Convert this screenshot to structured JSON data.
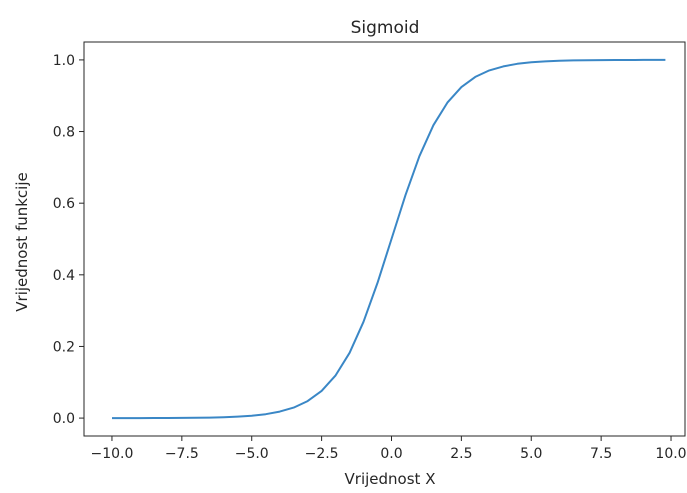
{
  "chart_data": {
    "type": "line",
    "title": "Sigmoid",
    "xlabel": "Vrijednost X",
    "ylabel": "Vrijednost funkcije",
    "xlim": [
      -11.0,
      10.5
    ],
    "ylim": [
      -0.05,
      1.05
    ],
    "x_ticks": [
      -10.0,
      -7.5,
      -5.0,
      -2.5,
      0.0,
      2.5,
      5.0,
      7.5,
      10.0
    ],
    "x_tick_labels": [
      "−10.0",
      "−7.5",
      "−5.0",
      "−2.5",
      "0.0",
      "2.5",
      "5.0",
      "7.5",
      "10.0"
    ],
    "y_ticks": [
      0.0,
      0.2,
      0.4,
      0.6,
      0.8,
      1.0
    ],
    "y_tick_labels": [
      "0.0",
      "0.2",
      "0.4",
      "0.6",
      "0.8",
      "1.0"
    ],
    "grid": false,
    "legend": "none",
    "series": [
      {
        "color": "#3a87c6",
        "x": [
          -10.0,
          -9.5,
          -9.0,
          -8.5,
          -8.0,
          -7.5,
          -7.0,
          -6.5,
          -6.0,
          -5.5,
          -5.0,
          -4.5,
          -4.0,
          -3.5,
          -3.0,
          -2.5,
          -2.0,
          -1.5,
          -1.0,
          -0.5,
          0.0,
          0.5,
          1.0,
          1.5,
          2.0,
          2.5,
          3.0,
          3.5,
          4.0,
          4.5,
          5.0,
          5.5,
          6.0,
          6.5,
          7.0,
          7.5,
          8.0,
          8.5,
          9.0,
          9.5,
          9.8
        ],
        "y": [
          0.0,
          0.0001,
          0.0001,
          0.0002,
          0.0003,
          0.0006,
          0.0009,
          0.0015,
          0.0025,
          0.0041,
          0.0067,
          0.011,
          0.018,
          0.0293,
          0.0474,
          0.0759,
          0.1192,
          0.1824,
          0.2689,
          0.3775,
          0.5,
          0.6225,
          0.7311,
          0.8176,
          0.8808,
          0.9241,
          0.9526,
          0.9707,
          0.982,
          0.989,
          0.9933,
          0.9959,
          0.9975,
          0.9985,
          0.9991,
          0.9994,
          0.9997,
          0.9998,
          0.9999,
          0.9999,
          0.9999
        ]
      }
    ]
  }
}
